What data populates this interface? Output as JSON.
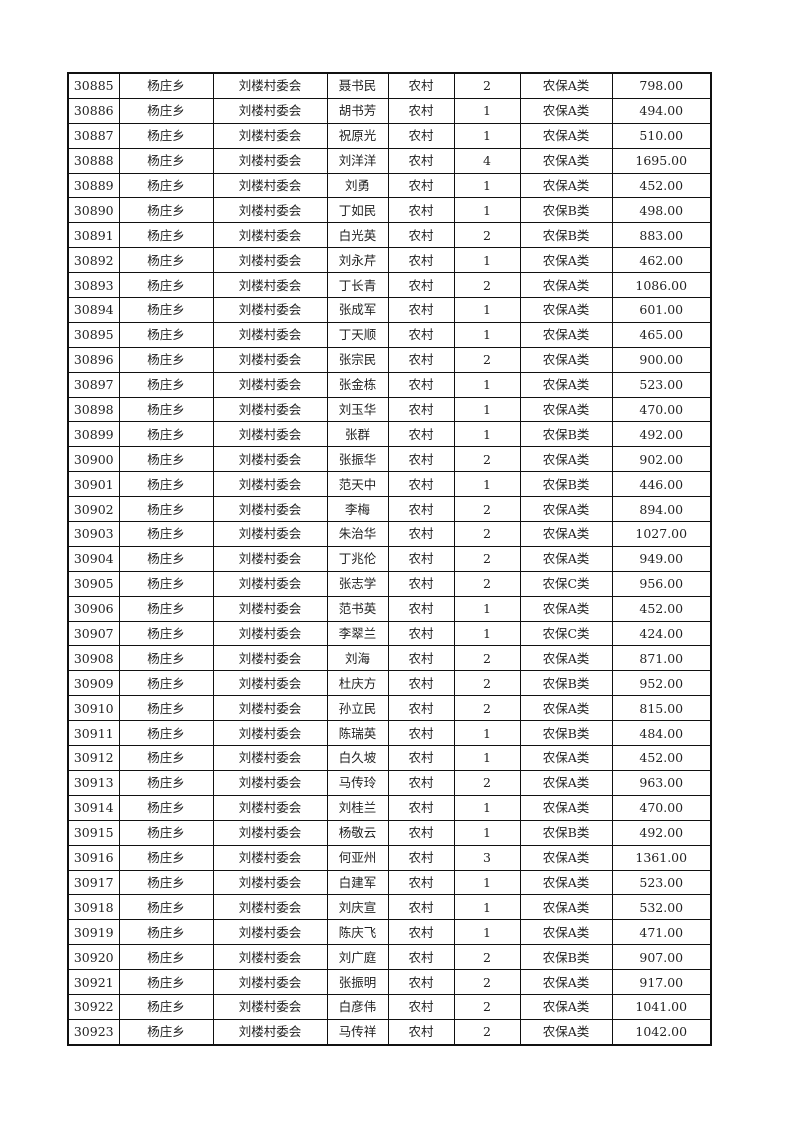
{
  "table": {
    "rows": [
      [
        "30885",
        "杨庄乡",
        "刘楼村委会",
        "聂书民",
        "农村",
        "2",
        "农保A类",
        "798.00"
      ],
      [
        "30886",
        "杨庄乡",
        "刘楼村委会",
        "胡书芳",
        "农村",
        "1",
        "农保A类",
        "494.00"
      ],
      [
        "30887",
        "杨庄乡",
        "刘楼村委会",
        "祝原光",
        "农村",
        "1",
        "农保A类",
        "510.00"
      ],
      [
        "30888",
        "杨庄乡",
        "刘楼村委会",
        "刘洋洋",
        "农村",
        "4",
        "农保A类",
        "1695.00"
      ],
      [
        "30889",
        "杨庄乡",
        "刘楼村委会",
        "刘勇",
        "农村",
        "1",
        "农保A类",
        "452.00"
      ],
      [
        "30890",
        "杨庄乡",
        "刘楼村委会",
        "丁如民",
        "农村",
        "1",
        "农保B类",
        "498.00"
      ],
      [
        "30891",
        "杨庄乡",
        "刘楼村委会",
        "白光英",
        "农村",
        "2",
        "农保B类",
        "883.00"
      ],
      [
        "30892",
        "杨庄乡",
        "刘楼村委会",
        "刘永芹",
        "农村",
        "1",
        "农保A类",
        "462.00"
      ],
      [
        "30893",
        "杨庄乡",
        "刘楼村委会",
        "丁长青",
        "农村",
        "2",
        "农保A类",
        "1086.00"
      ],
      [
        "30894",
        "杨庄乡",
        "刘楼村委会",
        "张成军",
        "农村",
        "1",
        "农保A类",
        "601.00"
      ],
      [
        "30895",
        "杨庄乡",
        "刘楼村委会",
        "丁天顺",
        "农村",
        "1",
        "农保A类",
        "465.00"
      ],
      [
        "30896",
        "杨庄乡",
        "刘楼村委会",
        "张宗民",
        "农村",
        "2",
        "农保A类",
        "900.00"
      ],
      [
        "30897",
        "杨庄乡",
        "刘楼村委会",
        "张金栋",
        "农村",
        "1",
        "农保A类",
        "523.00"
      ],
      [
        "30898",
        "杨庄乡",
        "刘楼村委会",
        "刘玉华",
        "农村",
        "1",
        "农保A类",
        "470.00"
      ],
      [
        "30899",
        "杨庄乡",
        "刘楼村委会",
        "张群",
        "农村",
        "1",
        "农保B类",
        "492.00"
      ],
      [
        "30900",
        "杨庄乡",
        "刘楼村委会",
        "张振华",
        "农村",
        "2",
        "农保A类",
        "902.00"
      ],
      [
        "30901",
        "杨庄乡",
        "刘楼村委会",
        "范天中",
        "农村",
        "1",
        "农保B类",
        "446.00"
      ],
      [
        "30902",
        "杨庄乡",
        "刘楼村委会",
        "李梅",
        "农村",
        "2",
        "农保A类",
        "894.00"
      ],
      [
        "30903",
        "杨庄乡",
        "刘楼村委会",
        "朱治华",
        "农村",
        "2",
        "农保A类",
        "1027.00"
      ],
      [
        "30904",
        "杨庄乡",
        "刘楼村委会",
        "丁兆伦",
        "农村",
        "2",
        "农保A类",
        "949.00"
      ],
      [
        "30905",
        "杨庄乡",
        "刘楼村委会",
        "张志学",
        "农村",
        "2",
        "农保C类",
        "956.00"
      ],
      [
        "30906",
        "杨庄乡",
        "刘楼村委会",
        "范书英",
        "农村",
        "1",
        "农保A类",
        "452.00"
      ],
      [
        "30907",
        "杨庄乡",
        "刘楼村委会",
        "李翠兰",
        "农村",
        "1",
        "农保C类",
        "424.00"
      ],
      [
        "30908",
        "杨庄乡",
        "刘楼村委会",
        "刘海",
        "农村",
        "2",
        "农保A类",
        "871.00"
      ],
      [
        "30909",
        "杨庄乡",
        "刘楼村委会",
        "杜庆方",
        "农村",
        "2",
        "农保B类",
        "952.00"
      ],
      [
        "30910",
        "杨庄乡",
        "刘楼村委会",
        "孙立民",
        "农村",
        "2",
        "农保A类",
        "815.00"
      ],
      [
        "30911",
        "杨庄乡",
        "刘楼村委会",
        "陈瑞英",
        "农村",
        "1",
        "农保B类",
        "484.00"
      ],
      [
        "30912",
        "杨庄乡",
        "刘楼村委会",
        "白久坡",
        "农村",
        "1",
        "农保A类",
        "452.00"
      ],
      [
        "30913",
        "杨庄乡",
        "刘楼村委会",
        "马传玲",
        "农村",
        "2",
        "农保A类",
        "963.00"
      ],
      [
        "30914",
        "杨庄乡",
        "刘楼村委会",
        "刘桂兰",
        "农村",
        "1",
        "农保A类",
        "470.00"
      ],
      [
        "30915",
        "杨庄乡",
        "刘楼村委会",
        "杨敬云",
        "农村",
        "1",
        "农保B类",
        "492.00"
      ],
      [
        "30916",
        "杨庄乡",
        "刘楼村委会",
        "何亚州",
        "农村",
        "3",
        "农保A类",
        "1361.00"
      ],
      [
        "30917",
        "杨庄乡",
        "刘楼村委会",
        "白建军",
        "农村",
        "1",
        "农保A类",
        "523.00"
      ],
      [
        "30918",
        "杨庄乡",
        "刘楼村委会",
        "刘庆宣",
        "农村",
        "1",
        "农保A类",
        "532.00"
      ],
      [
        "30919",
        "杨庄乡",
        "刘楼村委会",
        "陈庆飞",
        "农村",
        "1",
        "农保A类",
        "471.00"
      ],
      [
        "30920",
        "杨庄乡",
        "刘楼村委会",
        "刘广庭",
        "农村",
        "2",
        "农保B类",
        "907.00"
      ],
      [
        "30921",
        "杨庄乡",
        "刘楼村委会",
        "张振明",
        "农村",
        "2",
        "农保A类",
        "917.00"
      ],
      [
        "30922",
        "杨庄乡",
        "刘楼村委会",
        "白彦伟",
        "农村",
        "2",
        "农保A类",
        "1041.00"
      ],
      [
        "30923",
        "杨庄乡",
        "刘楼村委会",
        "马传祥",
        "农村",
        "2",
        "农保A类",
        "1042.00"
      ]
    ]
  }
}
